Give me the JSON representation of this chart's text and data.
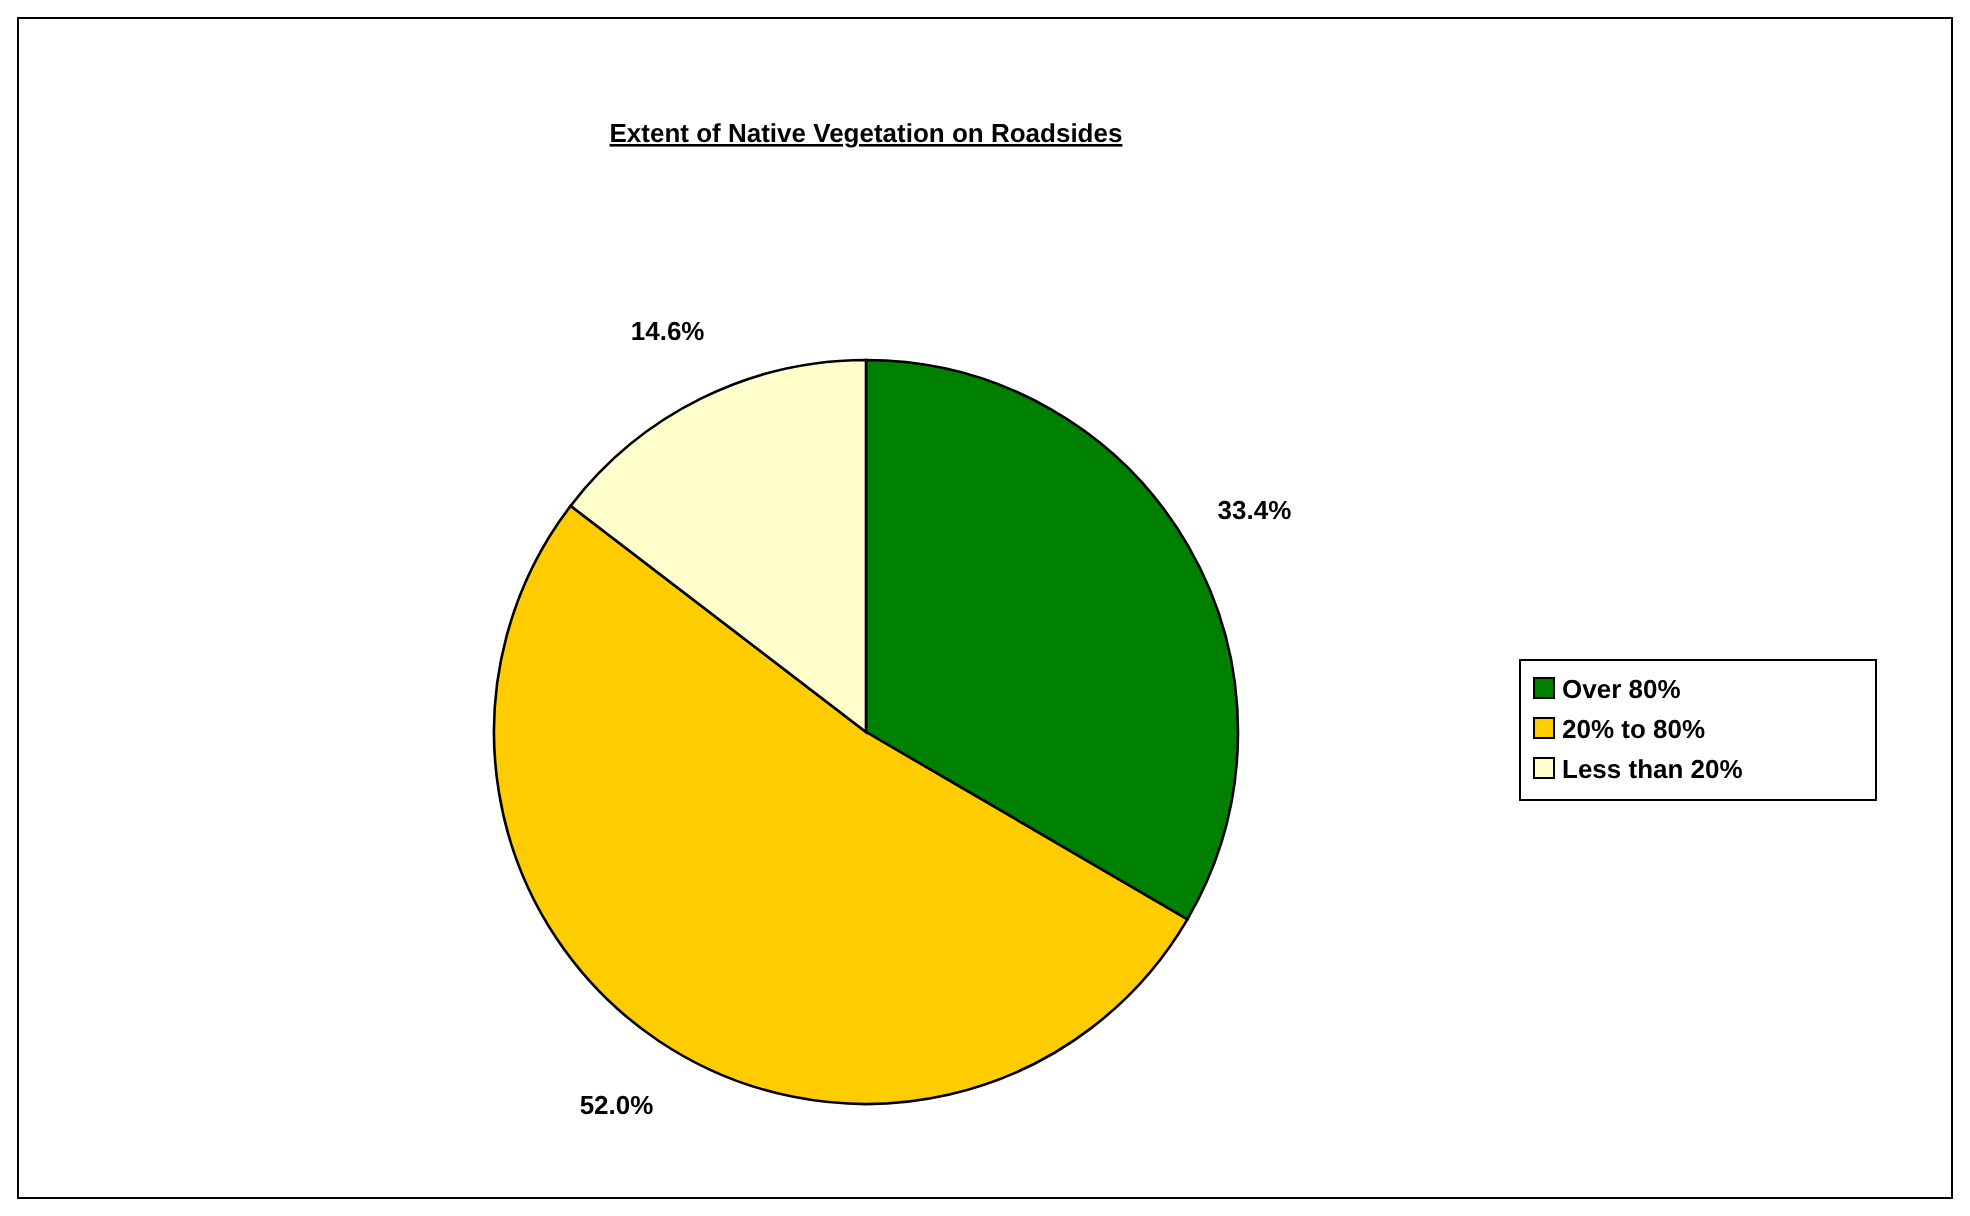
{
  "chart_data": {
    "type": "pie",
    "title": "Extent of Native Vegetation on Roadsides",
    "categories": [
      "Over 80%",
      "20% to 80%",
      "Less than 20%"
    ],
    "values": [
      33.4,
      52.0,
      14.6
    ],
    "value_labels": [
      "33.4%",
      "52.0%",
      "14.6%"
    ],
    "colors": [
      "#008000",
      "#ffcc00",
      "#ffffcc"
    ],
    "legend": "right"
  }
}
